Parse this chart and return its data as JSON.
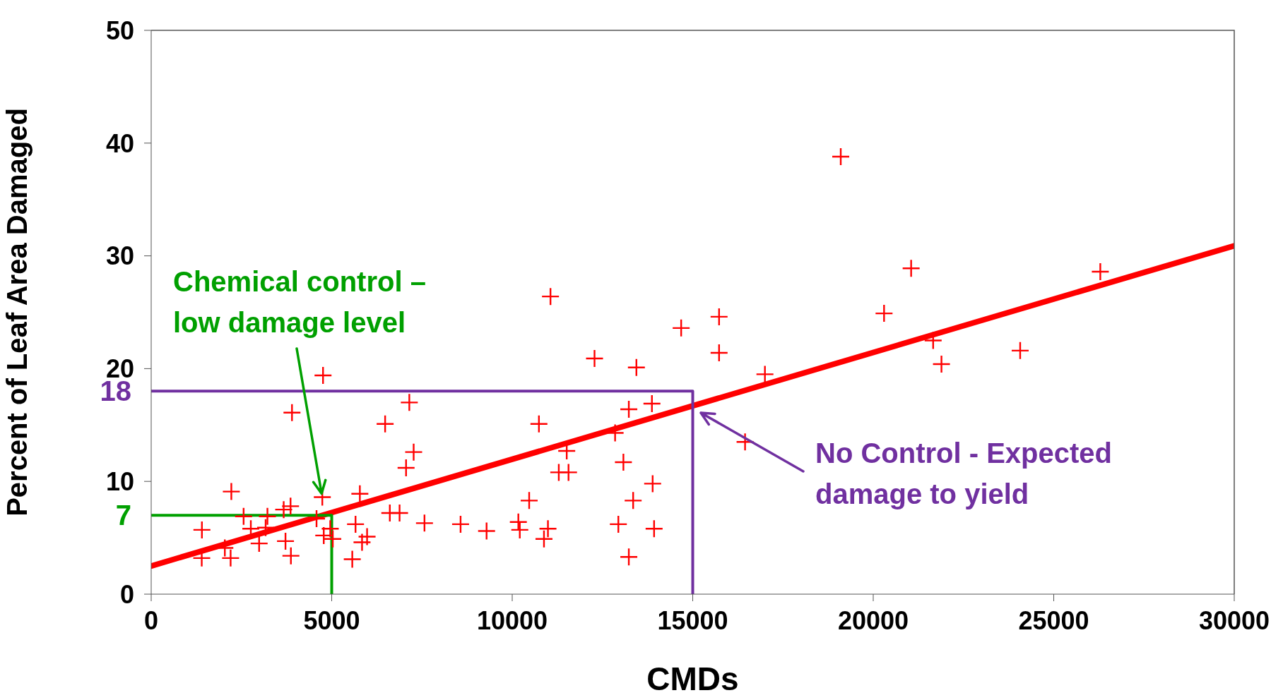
{
  "chart_data": {
    "type": "scatter",
    "xlabel": "CMDs",
    "ylabel": "Percent of Leaf Area Damaged",
    "xlim": [
      0,
      30000
    ],
    "ylim": [
      0,
      50
    ],
    "xticks": [
      0,
      5000,
      10000,
      15000,
      20000,
      25000,
      30000
    ],
    "yticks": [
      0,
      10,
      20,
      30,
      40,
      50
    ],
    "marker": "cross",
    "series": [
      {
        "color": "#ff0000",
        "x": [
          1405,
          1400,
          2040,
          2220,
          2200,
          2560,
          2760,
          2990,
          3170,
          3220,
          3670,
          3860,
          3720,
          3870,
          3900,
          4760,
          4740,
          4580,
          4780,
          4960,
          5030,
          5570,
          5660,
          5840,
          5780,
          5980,
          6480,
          6610,
          6880,
          7060,
          7270,
          7150,
          7570,
          8570,
          9290,
          10170,
          10210,
          10470,
          10740,
          10880,
          10990,
          11060,
          11290,
          11560,
          11510,
          12280,
          12850,
          12940,
          13080,
          13230,
          13230,
          13350,
          13440,
          13890,
          13930,
          13870,
          14680,
          15730,
          15730,
          16450,
          17000,
          19100,
          20300,
          21050,
          21660,
          21890,
          24070,
          26290
        ],
        "values": [
          5.7,
          3.2,
          4.1,
          9.1,
          3.2,
          6.9,
          5.8,
          4.5,
          5.9,
          6.9,
          7.5,
          7.8,
          4.7,
          3.4,
          16.1,
          19.4,
          8.6,
          6.7,
          5.2,
          5.8,
          4.9,
          3.1,
          6.2,
          4.6,
          8.9,
          5.1,
          15.1,
          7.2,
          7.2,
          11.2,
          12.6,
          17.0,
          6.3,
          6.2,
          5.6,
          6.4,
          5.7,
          8.3,
          15.1,
          4.9,
          5.8,
          26.4,
          10.8,
          10.8,
          12.7,
          20.9,
          14.3,
          6.2,
          11.7,
          16.4,
          3.3,
          8.3,
          20.1,
          9.8,
          5.8,
          16.9,
          23.6,
          24.6,
          21.4,
          13.5,
          19.5,
          38.8,
          24.9,
          28.9,
          22.5,
          20.4,
          21.6,
          28.6
        ]
      },
      {
        "type": "line",
        "marker": "none",
        "color": "#ff0000",
        "x": [
          0,
          30000
        ],
        "values": [
          2.5,
          30.9
        ]
      },
      {
        "type": "line",
        "marker": "none",
        "color": "#7030a0",
        "x": [
          0,
          15000,
          15000
        ],
        "values": [
          18,
          18,
          0
        ],
        "value_labels": [
          "18",
          null,
          null
        ]
      },
      {
        "type": "line",
        "marker": "none",
        "color": "#00a000",
        "x": [
          0,
          5000,
          5000
        ],
        "values": [
          7,
          7,
          0
        ],
        "value_labels": [
          "7",
          null,
          null
        ]
      }
    ],
    "annotations": [
      {
        "text": "Chemical control – low damage level",
        "x": 4740,
        "y": 8.6
      },
      "No Control - Expected damage to yield"
    ]
  }
}
